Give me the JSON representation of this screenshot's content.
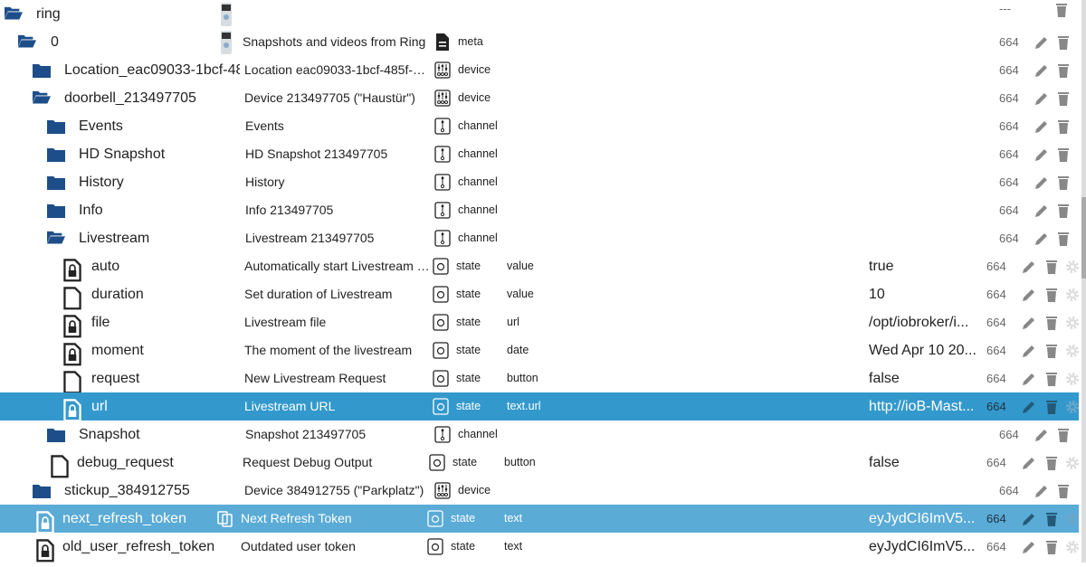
{
  "colors": {
    "folder": "#1d4e89",
    "selected": "#3399cc",
    "selected_light": "#5aabd6",
    "action": "#888888"
  },
  "rows": [
    {
      "icon": "folder-open",
      "name": "ring",
      "image": "doorbell-image",
      "desc": "",
      "type": "",
      "type_icon": "",
      "role": "",
      "value": "",
      "acl": "---",
      "actions": [
        "delete"
      ]
    },
    {
      "icon": "folder-open",
      "name": "0",
      "image": "doorbell-image",
      "desc": "Snapshots and videos from Ring",
      "type": "meta",
      "type_icon": "meta",
      "role": "",
      "value": "",
      "acl": "664",
      "actions": [
        "edit",
        "delete"
      ]
    },
    {
      "icon": "folder",
      "name": "Location_eac09033-1bcf-485",
      "desc": "Location eac09033-1bcf-485f-9d...",
      "type": "device",
      "type_icon": "device",
      "role": "",
      "value": "",
      "acl": "664",
      "actions": [
        "edit",
        "delete"
      ]
    },
    {
      "icon": "folder-open",
      "name": "doorbell_213497705",
      "desc": "Device 213497705 (\"Haustür\")",
      "type": "device",
      "type_icon": "device",
      "role": "",
      "value": "",
      "acl": "664",
      "actions": [
        "edit",
        "delete"
      ]
    },
    {
      "icon": "folder",
      "name": "Events",
      "desc": "Events",
      "type": "channel",
      "type_icon": "channel",
      "role": "",
      "value": "",
      "acl": "664",
      "actions": [
        "edit",
        "delete"
      ]
    },
    {
      "icon": "folder",
      "name": "HD Snapshot",
      "desc": "HD Snapshot 213497705",
      "type": "channel",
      "type_icon": "channel",
      "role": "",
      "value": "",
      "acl": "664",
      "actions": [
        "edit",
        "delete"
      ]
    },
    {
      "icon": "folder",
      "name": "History",
      "desc": "History",
      "type": "channel",
      "type_icon": "channel",
      "role": "",
      "value": "",
      "acl": "664",
      "actions": [
        "edit",
        "delete"
      ]
    },
    {
      "icon": "folder",
      "name": "Info",
      "desc": "Info 213497705",
      "type": "channel",
      "type_icon": "channel",
      "role": "",
      "value": "",
      "acl": "664",
      "actions": [
        "edit",
        "delete"
      ]
    },
    {
      "icon": "folder-open",
      "name": "Livestream",
      "desc": "Livestream 213497705",
      "type": "channel",
      "type_icon": "channel",
      "role": "",
      "value": "",
      "acl": "664",
      "actions": [
        "edit",
        "delete"
      ]
    },
    {
      "icon": "file-lock",
      "name": "auto",
      "desc": "Automatically start Livestream o...",
      "type": "state",
      "type_icon": "state",
      "role": "value",
      "value": "true",
      "acl": "664",
      "actions": [
        "edit",
        "delete",
        "settings"
      ]
    },
    {
      "icon": "file",
      "name": "duration",
      "desc": "Set duration of Livestream",
      "type": "state",
      "type_icon": "state",
      "role": "value",
      "value": "10",
      "acl": "664",
      "actions": [
        "edit",
        "delete",
        "settings"
      ]
    },
    {
      "icon": "file-lock",
      "name": "file",
      "desc": "Livestream file",
      "type": "state",
      "type_icon": "state",
      "role": "url",
      "value": "/opt/iobroker/i...",
      "acl": "664",
      "actions": [
        "edit",
        "delete",
        "settings"
      ]
    },
    {
      "icon": "file-lock",
      "name": "moment",
      "desc": "The moment of the livestream",
      "type": "state",
      "type_icon": "state",
      "role": "date",
      "value": "Wed Apr 10 20...",
      "acl": "664",
      "actions": [
        "edit",
        "delete",
        "settings"
      ]
    },
    {
      "icon": "file",
      "name": "request",
      "desc": "New Livestream Request",
      "type": "state",
      "type_icon": "state",
      "role": "button",
      "value": "false",
      "acl": "664",
      "actions": [
        "edit",
        "delete",
        "settings"
      ]
    },
    {
      "icon": "file-lock",
      "name": "url",
      "desc": "Livestream URL",
      "type": "state",
      "type_icon": "state",
      "role": "text.url",
      "value": "http://ioB-Mast...",
      "acl": "664",
      "actions": [
        "edit",
        "delete",
        "settings"
      ],
      "selected": "primary"
    },
    {
      "icon": "folder",
      "name": "Snapshot",
      "desc": "Snapshot 213497705",
      "type": "channel",
      "type_icon": "channel",
      "role": "",
      "value": "",
      "acl": "664",
      "actions": [
        "edit",
        "delete"
      ]
    },
    {
      "icon": "file",
      "name": "debug_request",
      "desc": "Request Debug Output",
      "type": "state",
      "type_icon": "state",
      "role": "button",
      "value": "false",
      "acl": "664",
      "actions": [
        "edit",
        "delete",
        "settings"
      ]
    },
    {
      "icon": "folder",
      "name": "stickup_384912755",
      "desc": "Device 384912755 (\"Parkplatz\")",
      "type": "device",
      "type_icon": "device",
      "role": "",
      "value": "",
      "acl": "664",
      "actions": [
        "edit",
        "delete"
      ]
    },
    {
      "icon": "file-lock",
      "name": "next_refresh_token",
      "copy_icon": true,
      "desc": "Next Refresh Token",
      "type": "state",
      "type_icon": "state",
      "role": "text",
      "value": "eyJydCI6ImV5...",
      "acl": "664",
      "actions": [
        "edit",
        "delete",
        "settings"
      ],
      "selected": "secondary"
    },
    {
      "icon": "file-lock",
      "name": "old_user_refresh_token",
      "desc": "Outdated user token",
      "type": "state",
      "type_icon": "state",
      "role": "text",
      "value": "eyJydCI6ImV5...",
      "acl": "664",
      "actions": [
        "edit",
        "delete",
        "settings"
      ]
    }
  ]
}
